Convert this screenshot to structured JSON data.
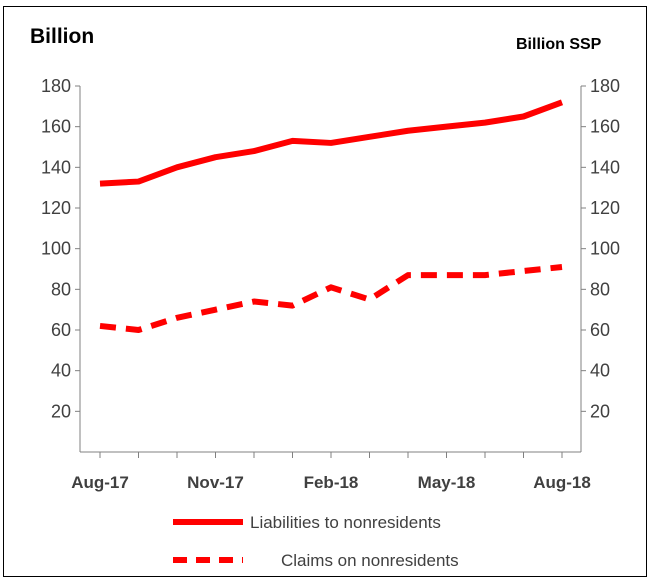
{
  "chart_data": {
    "type": "line",
    "title_left": "Billion",
    "title_right": "Billion  SSP",
    "x": [
      "Aug-17",
      "Sep-17",
      "Oct-17",
      "Nov-17",
      "Dec-17",
      "Jan-18",
      "Feb-18",
      "Mar-18",
      "Apr-18",
      "May-18",
      "Jun-18",
      "Jul-18",
      "Aug-18"
    ],
    "x_tick_labels": [
      "Aug-17",
      "Nov-17",
      "Feb-18",
      "May-18",
      "Aug-18"
    ],
    "y_ticks": [
      20,
      40,
      60,
      80,
      100,
      120,
      140,
      160,
      180
    ],
    "ylim": [
      0,
      180
    ],
    "y_right_ticks": [
      20,
      40,
      60,
      80,
      100,
      120,
      140,
      160,
      180
    ],
    "series": [
      {
        "name": "Liabilities to nonresidents",
        "style": "solid",
        "color": "#ff0000",
        "values": [
          132,
          133,
          140,
          145,
          148,
          153,
          152,
          155,
          158,
          160,
          162,
          165,
          172
        ]
      },
      {
        "name": "Claims on nonresidents",
        "style": "dashed",
        "color": "#ff0000",
        "values": [
          62,
          60,
          66,
          70,
          74,
          72,
          81,
          75,
          87,
          87,
          87,
          89,
          91
        ]
      }
    ],
    "legend_position": "bottom",
    "grid": false
  }
}
